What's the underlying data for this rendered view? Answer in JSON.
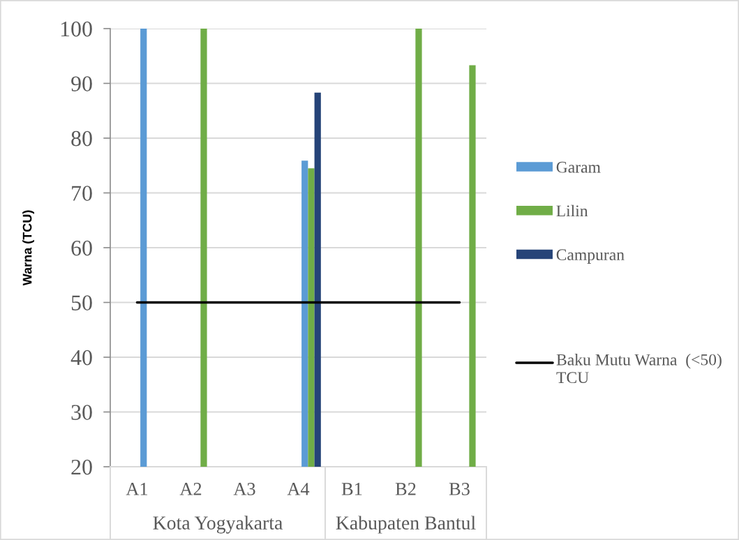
{
  "chart_data": {
    "type": "bar",
    "ylabel": "Warna (TCU)",
    "categories": [
      "A1",
      "A2",
      "A3",
      "A4",
      "B1",
      "B2",
      "B3"
    ],
    "series": [
      {
        "name": "Garam",
        "color": "#5b9bd5",
        "values": [
          100,
          null,
          null,
          75.9,
          null,
          null,
          null
        ]
      },
      {
        "name": "Lilin",
        "color": "#70ad47",
        "values": [
          null,
          100,
          null,
          74.5,
          null,
          100,
          93.3
        ]
      },
      {
        "name": "Campuran",
        "color": "#264478",
        "values": [
          null,
          null,
          null,
          88.3,
          null,
          null,
          null
        ]
      }
    ],
    "ylim": [
      20,
      100
    ],
    "yticks": [
      20,
      30,
      40,
      50,
      60,
      70,
      80,
      90,
      100
    ],
    "grid": "y",
    "legend": "right",
    "ref_lines": [
      {
        "axis": "y",
        "value": 50,
        "label": "Baku Mutu Warna  (<50) TCU",
        "color": "#000000",
        "line_style": "solid"
      }
    ],
    "annotations": [
      "Kota Yogyakarta",
      "Kabupaten Bantul"
    ]
  }
}
